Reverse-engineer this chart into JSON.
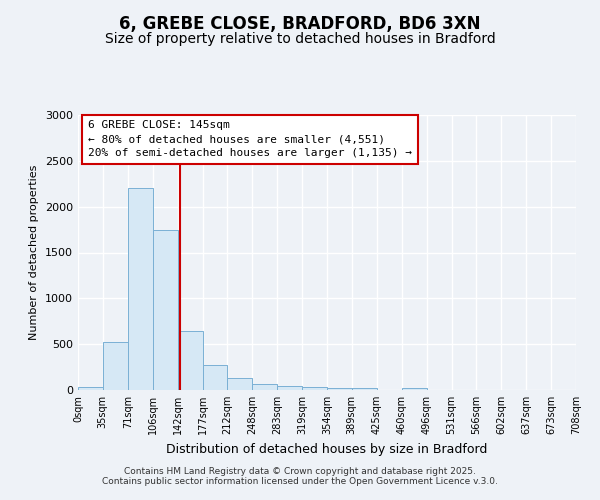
{
  "title": "6, GREBE CLOSE, BRADFORD, BD6 3XN",
  "subtitle": "Size of property relative to detached houses in Bradford",
  "xlabel": "Distribution of detached houses by size in Bradford",
  "ylabel": "Number of detached properties",
  "bar_color": "#d6e8f5",
  "bar_edge_color": "#7ab0d4",
  "background_color": "#eef2f7",
  "grid_color": "#ffffff",
  "bin_edges": [
    0,
    35,
    71,
    106,
    142,
    177,
    212,
    248,
    283,
    319,
    354,
    389,
    425,
    460,
    496,
    531,
    566,
    602,
    637,
    673,
    708
  ],
  "bar_heights": [
    28,
    525,
    2200,
    1750,
    640,
    270,
    130,
    65,
    40,
    35,
    25,
    20,
    5,
    20,
    5,
    2,
    1,
    1,
    0,
    0
  ],
  "property_size": 145,
  "property_line_color": "#cc0000",
  "annotation_box_color": "#ffffff",
  "annotation_box_edge_color": "#cc0000",
  "annotation_title": "6 GREBE CLOSE: 145sqm",
  "annotation_line1": "← 80% of detached houses are smaller (4,551)",
  "annotation_line2": "20% of semi-detached houses are larger (1,135) →",
  "annotation_fontsize": 8,
  "ylim": [
    0,
    3000
  ],
  "xlim": [
    0,
    708
  ],
  "tick_labels": [
    "0sqm",
    "35sqm",
    "71sqm",
    "106sqm",
    "142sqm",
    "177sqm",
    "212sqm",
    "248sqm",
    "283sqm",
    "319sqm",
    "354sqm",
    "389sqm",
    "425sqm",
    "460sqm",
    "496sqm",
    "531sqm",
    "566sqm",
    "602sqm",
    "637sqm",
    "673sqm",
    "708sqm"
  ],
  "footer1": "Contains HM Land Registry data © Crown copyright and database right 2025.",
  "footer2": "Contains public sector information licensed under the Open Government Licence v.3.0.",
  "title_fontsize": 12,
  "subtitle_fontsize": 10,
  "axis_label_fontsize": 9,
  "tick_fontsize": 7,
  "footer_fontsize": 6.5,
  "ylabel_fontsize": 8
}
